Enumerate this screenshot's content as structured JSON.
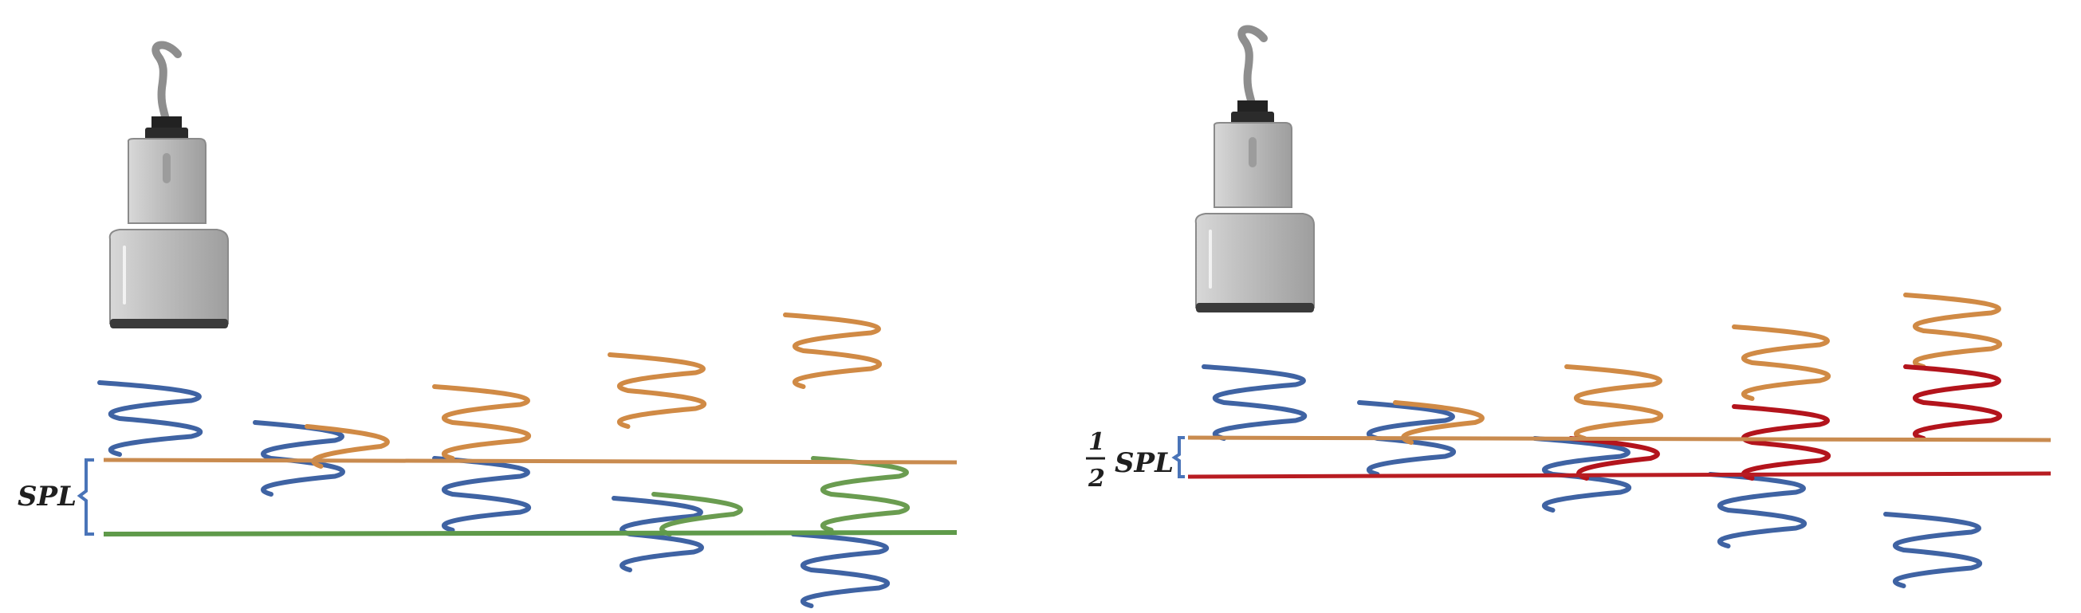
{
  "panels": [
    {
      "id": "full",
      "label": "SPL",
      "label_prefix": "",
      "top_line_color": "#c98b4f",
      "bottom_line_color": "#5f9a4a"
    },
    {
      "id": "half",
      "label": "SPL",
      "label_prefix": {
        "numerator": "1",
        "denominator": "2"
      },
      "top_line_color": "#c98b4f",
      "bottom_line_color": "#b81c22"
    }
  ],
  "colors": {
    "pulse_blue": "#3f63a3",
    "pulse_orange": "#d08a45",
    "pulse_green": "#6a9c50",
    "pulse_red": "#b3141c",
    "probe_body": "#bdbdbd",
    "probe_dark": "#222222",
    "bracket": "#4a74b8"
  },
  "icons": [
    "ultrasound-probe-icon",
    "ultrasound-probe-icon"
  ]
}
